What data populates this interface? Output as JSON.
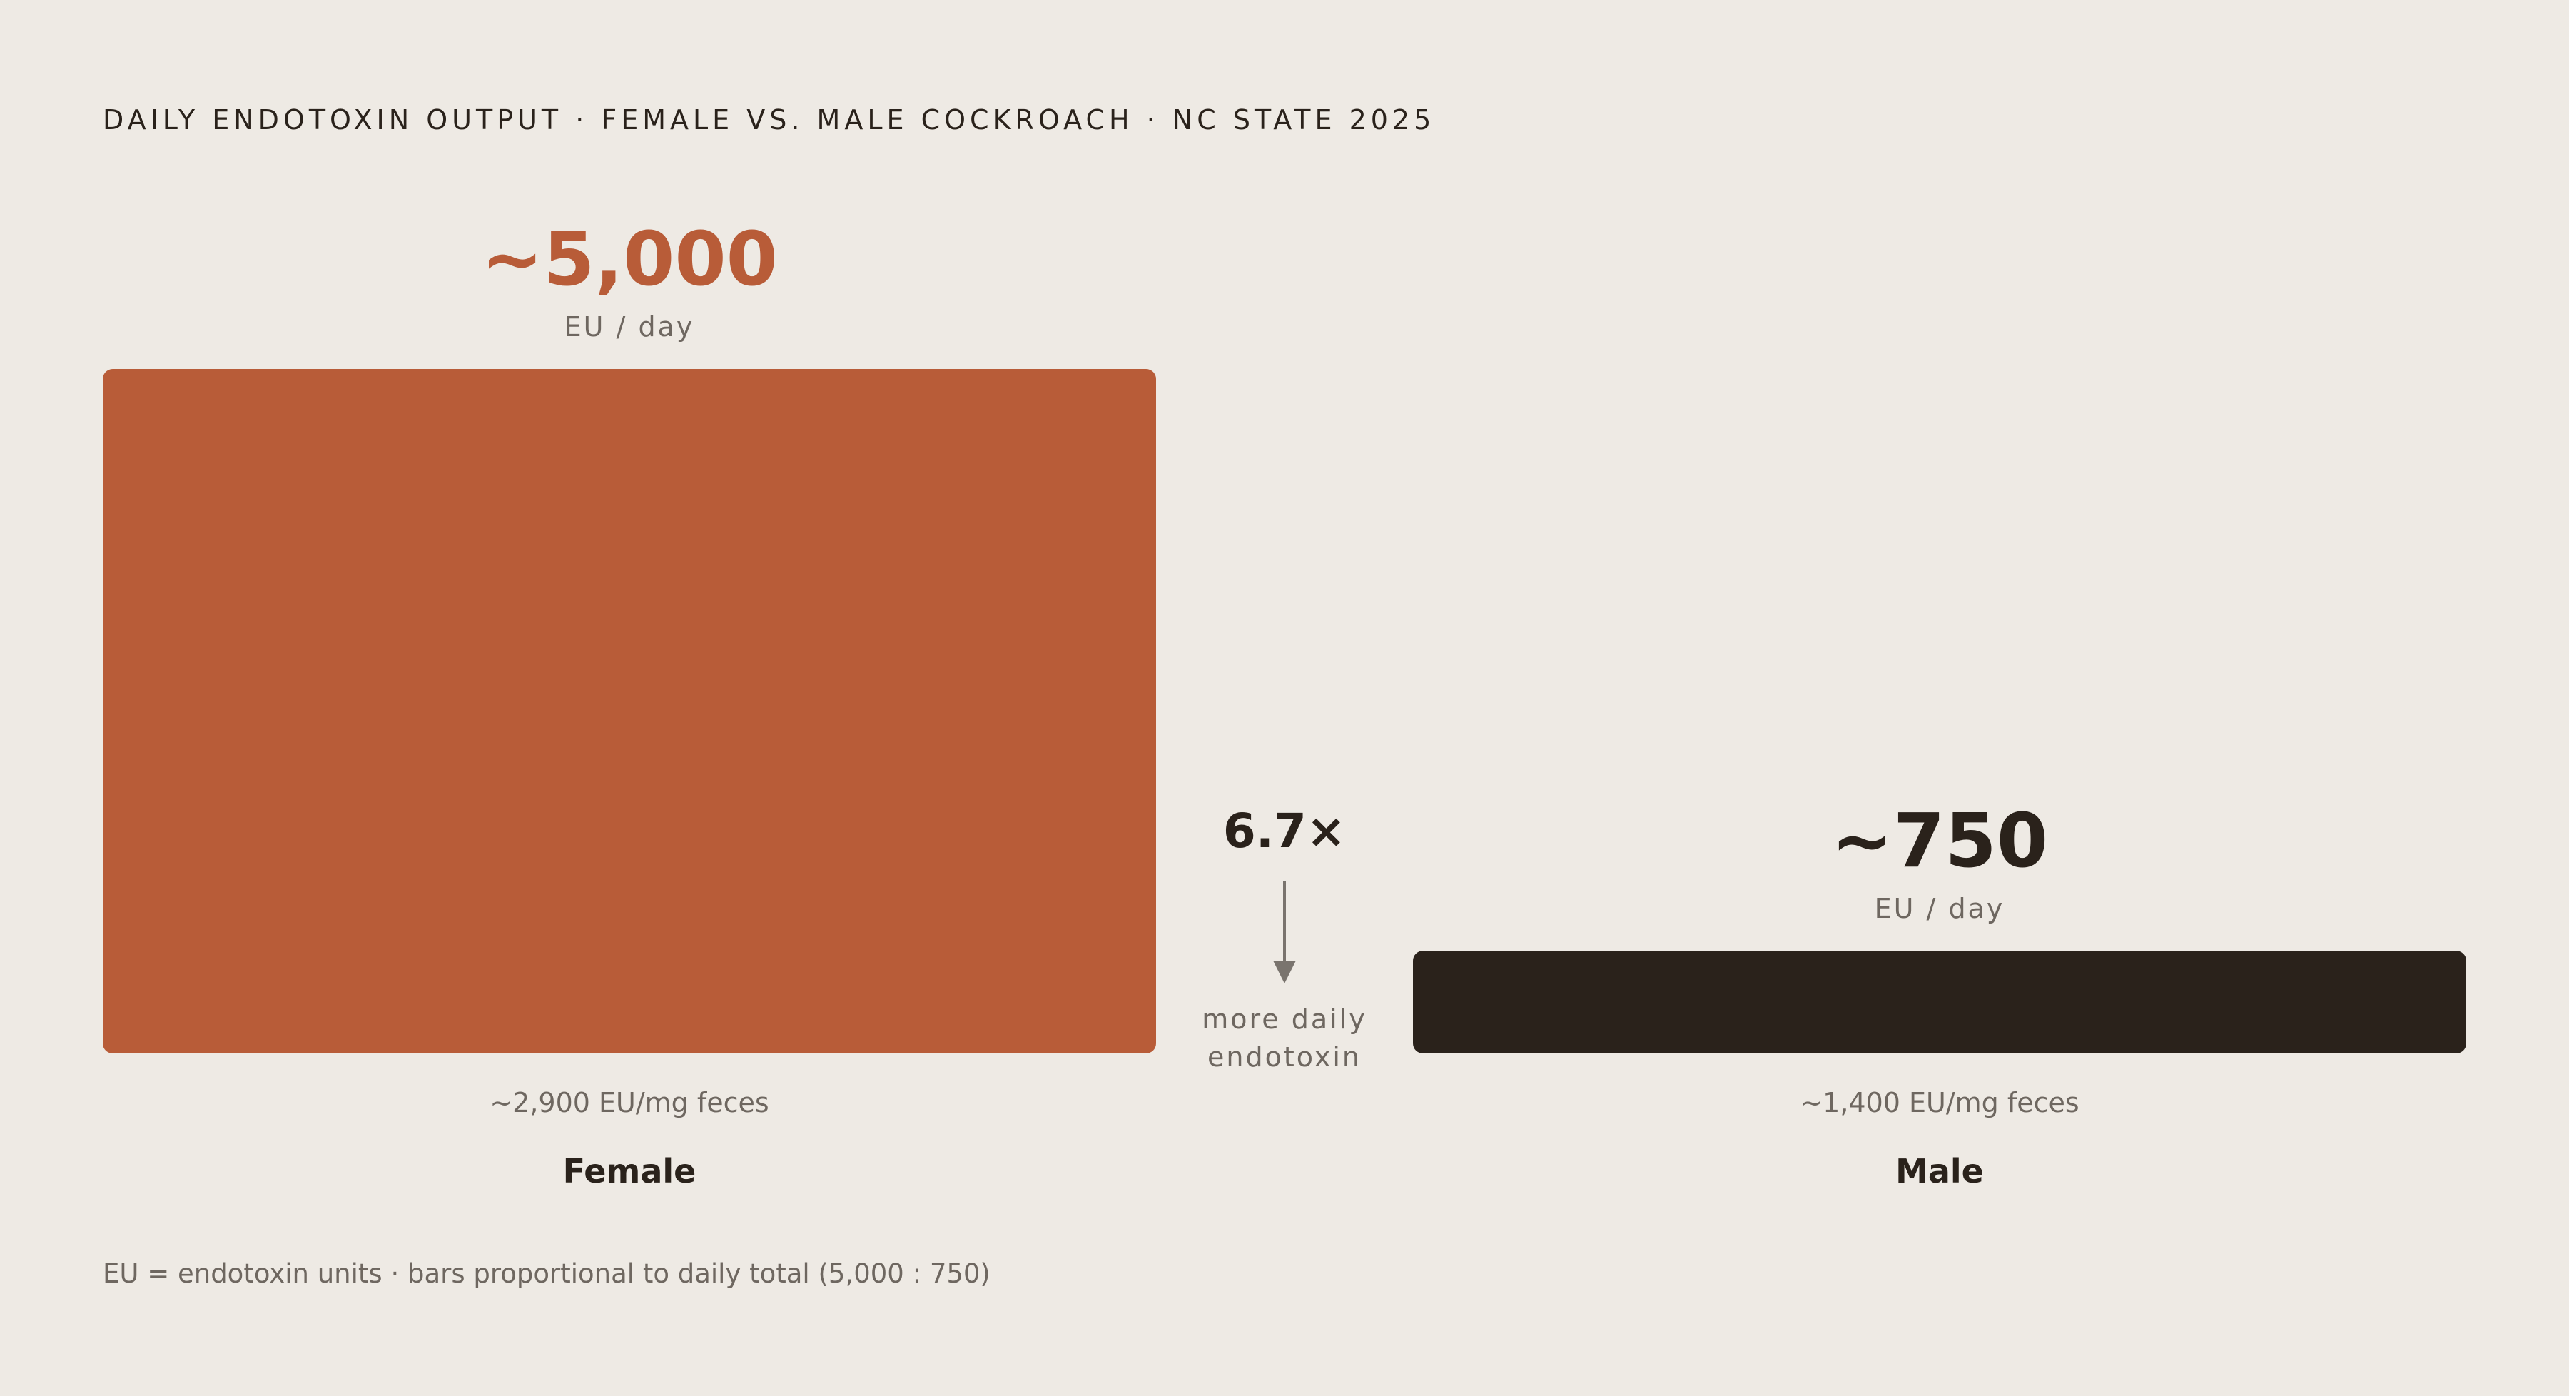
{
  "title": "DAILY ENDOTOXIN OUTPUT · FEMALE VS. MALE COCKROACH · NC STATE 2025",
  "colors": {
    "background": "#EEEAE4",
    "female": "#B85C38",
    "male": "#2A221B",
    "muted_text": "#6E6760",
    "arrow": "#7A746E"
  },
  "chart_data": {
    "type": "bar",
    "categories": [
      "Female",
      "Male"
    ],
    "values": [
      5000,
      750
    ],
    "value_labels": [
      "~5,000",
      "~750"
    ],
    "unit": "EU / day",
    "secondary_labels": [
      "~2,900 EU/mg feces",
      "~1,400 EU/mg feces"
    ],
    "ylim": [
      0,
      5000
    ],
    "grid": false,
    "legend": "none"
  },
  "comparison": {
    "ratio": "6.7×",
    "caption_line1": "more daily",
    "caption_line2": "endotoxin"
  },
  "footnote": "EU = endotoxin units · bars proportional to daily total (5,000 : 750)"
}
